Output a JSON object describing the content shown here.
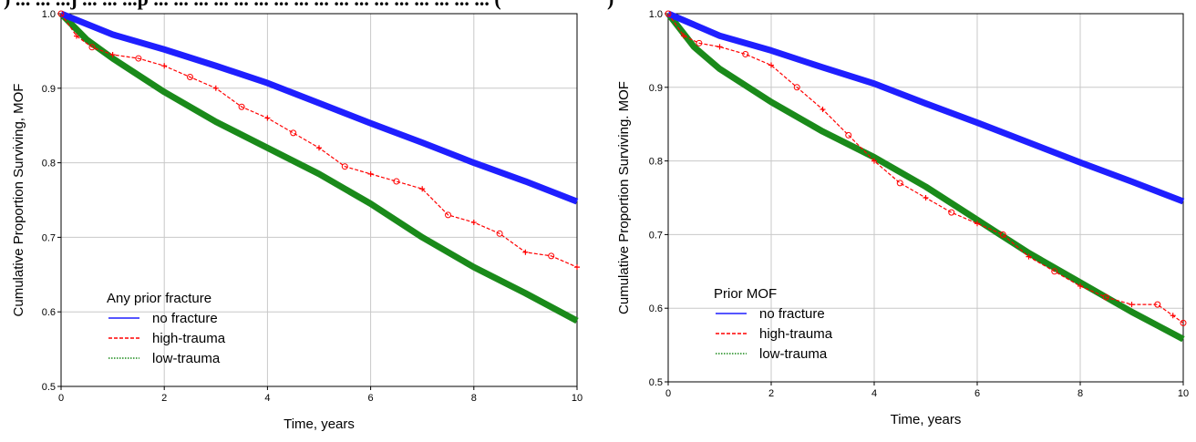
{
  "chart_data": [
    {
      "type": "line",
      "top_text": ") ... ... ...j ... ... ...p ... ... ... ... ... ... ... ... ... ... ... ... ... ... ... ... ... (",
      "xlabel": "Time, years",
      "ylabel": "Cumulative Proportion Surviving, MOF",
      "xlim": [
        0,
        10
      ],
      "ylim": [
        0.5,
        1.0
      ],
      "x_ticks": [
        0,
        2,
        4,
        6,
        8,
        10
      ],
      "y_ticks": [
        "0.5",
        "0.6",
        "0.7",
        "0.8",
        "0.9",
        "1.0"
      ],
      "grid": true,
      "legend": {
        "title": "Any prior fracture",
        "placement": "bottom-left"
      },
      "series": [
        {
          "name": "no fracture",
          "color": "#1f1fff",
          "style": "solid",
          "x": [
            0,
            1,
            2,
            3,
            4,
            5,
            6,
            7,
            8,
            9,
            10
          ],
          "y": [
            1.0,
            0.972,
            0.952,
            0.93,
            0.907,
            0.88,
            0.853,
            0.827,
            0.8,
            0.775,
            0.748
          ]
        },
        {
          "name": "high-trauma",
          "color": "#ff0000",
          "style": "dashed",
          "x": [
            0,
            0.3,
            0.6,
            1.0,
            1.5,
            2.0,
            2.5,
            3.0,
            3.5,
            4.0,
            4.5,
            5.0,
            5.5,
            6.0,
            6.5,
            7.0,
            7.5,
            8.0,
            8.5,
            9.0,
            9.5,
            10.0
          ],
          "y": [
            1.0,
            0.97,
            0.955,
            0.945,
            0.94,
            0.93,
            0.915,
            0.9,
            0.875,
            0.86,
            0.84,
            0.82,
            0.795,
            0.785,
            0.775,
            0.765,
            0.73,
            0.72,
            0.705,
            0.68,
            0.675,
            0.66
          ]
        },
        {
          "name": "low-trauma",
          "color": "#1a8a1a",
          "style": "dotted",
          "x": [
            0,
            0.5,
            1,
            2,
            3,
            4,
            5,
            6,
            7,
            8,
            9,
            10
          ],
          "y": [
            1.0,
            0.965,
            0.94,
            0.895,
            0.855,
            0.82,
            0.785,
            0.745,
            0.7,
            0.66,
            0.625,
            0.588
          ]
        }
      ]
    },
    {
      "type": "line",
      "top_text": ")",
      "xlabel": "Time, years",
      "ylabel": "Cumulative Proportion Surviving. MOF",
      "xlim": [
        0,
        10
      ],
      "ylim": [
        0.5,
        1.0
      ],
      "x_ticks": [
        0,
        2,
        4,
        6,
        8,
        10
      ],
      "y_ticks": [
        "0.5",
        "0.6",
        "0.7",
        "0.8",
        "0.9",
        "1.0"
      ],
      "grid": true,
      "legend": {
        "title": "Prior MOF",
        "placement": "bottom-left"
      },
      "series": [
        {
          "name": "no fracture",
          "color": "#1f1fff",
          "style": "solid",
          "x": [
            0,
            1,
            2,
            3,
            4,
            5,
            6,
            7,
            8,
            9,
            10
          ],
          "y": [
            1.0,
            0.97,
            0.95,
            0.927,
            0.905,
            0.878,
            0.852,
            0.825,
            0.798,
            0.772,
            0.745
          ]
        },
        {
          "name": "high-trauma",
          "color": "#ff0000",
          "style": "dashed",
          "x": [
            0,
            0.3,
            0.6,
            1.0,
            1.5,
            2.0,
            2.5,
            3.0,
            3.5,
            4.0,
            4.5,
            5.0,
            5.5,
            6.0,
            6.5,
            7.0,
            7.5,
            8.0,
            8.5,
            9.0,
            9.5,
            9.8,
            10.0
          ],
          "y": [
            1.0,
            0.97,
            0.96,
            0.955,
            0.945,
            0.93,
            0.9,
            0.87,
            0.835,
            0.8,
            0.77,
            0.75,
            0.73,
            0.715,
            0.7,
            0.67,
            0.65,
            0.63,
            0.615,
            0.605,
            0.605,
            0.59,
            0.58
          ]
        },
        {
          "name": "low-trauma",
          "color": "#1a8a1a",
          "style": "dotted",
          "x": [
            0,
            0.5,
            1,
            2,
            3,
            4,
            5,
            6,
            7,
            8,
            9,
            10
          ],
          "y": [
            1.0,
            0.955,
            0.925,
            0.88,
            0.84,
            0.805,
            0.765,
            0.72,
            0.675,
            0.635,
            0.595,
            0.558
          ]
        }
      ]
    }
  ]
}
